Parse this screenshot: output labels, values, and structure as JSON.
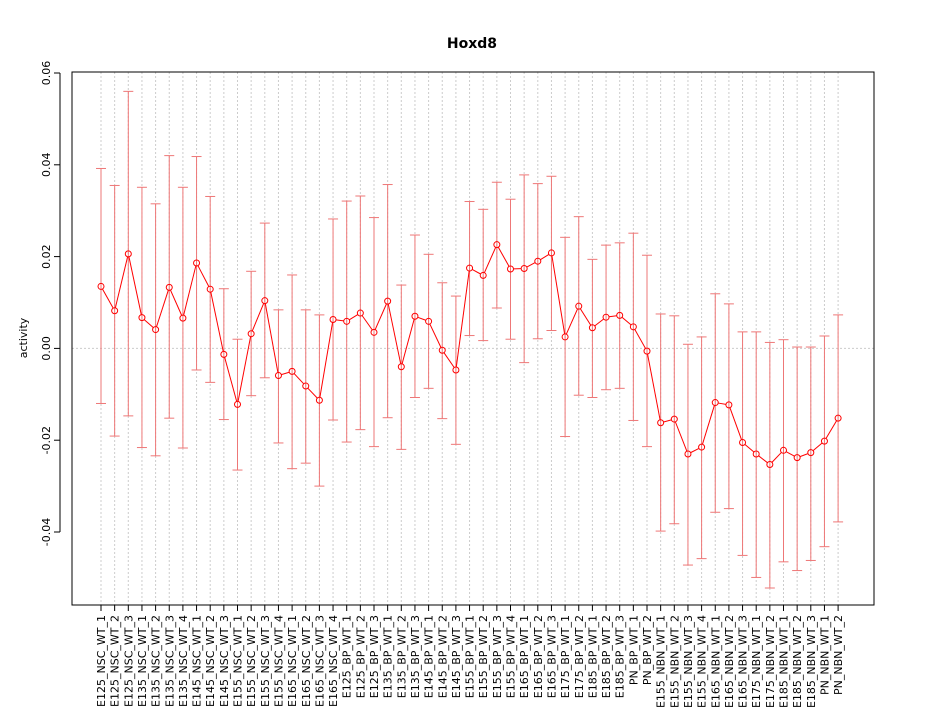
{
  "colors": {
    "series": "#ff0000",
    "errorbar": "#ee7777",
    "grid": "#cccccc",
    "axis": "#000000"
  },
  "chart_data": {
    "type": "line",
    "title": "Hoxd8",
    "xlabel": "",
    "ylabel": "activity",
    "ylim": [
      -0.055,
      0.06
    ],
    "yticks": [
      -0.04,
      -0.02,
      0.0,
      0.02,
      0.04,
      0.06
    ],
    "ytick_labels": [
      "-0.04",
      "-0.02",
      "0.00",
      "0.02",
      "0.04",
      "0.06"
    ],
    "grid": true,
    "zero_line": true,
    "categories": [
      "E125_NSC_WT_1",
      "E125_NSC_WT_2",
      "E125_NSC_WT_3",
      "E135_NSC_WT_1",
      "E135_NSC_WT_2",
      "E135_NSC_WT_3",
      "E135_NSC_WT_4",
      "E145_NSC_WT_1",
      "E145_NSC_WT_2",
      "E145_NSC_WT_3",
      "E155_NSC_WT_1",
      "E155_NSC_WT_2",
      "E155_NSC_WT_3",
      "E155_NSC_WT_4",
      "E165_NSC_WT_1",
      "E165_NSC_WT_2",
      "E165_NSC_WT_3",
      "E165_NSC_WT_4",
      "E125_BP_WT_1",
      "E125_BP_WT_2",
      "E125_BP_WT_3",
      "E135_BP_WT_1",
      "E135_BP_WT_2",
      "E135_BP_WT_3",
      "E145_BP_WT_1",
      "E145_BP_WT_2",
      "E145_BP_WT_3",
      "E155_BP_WT_1",
      "E155_BP_WT_2",
      "E155_BP_WT_3",
      "E155_BP_WT_4",
      "E165_BP_WT_1",
      "E165_BP_WT_2",
      "E165_BP_WT_3",
      "E175_BP_WT_1",
      "E175_BP_WT_2",
      "E185_BP_WT_1",
      "E185_BP_WT_2",
      "E185_BP_WT_3",
      "PN_BP_WT_1",
      "PN_BP_WT_2",
      "E155_NBN_WT_1",
      "E155_NBN_WT_2",
      "E155_NBN_WT_3",
      "E155_NBN_WT_4",
      "E165_NBN_WT_1",
      "E165_NBN_WT_2",
      "E165_NBN_WT_3",
      "E175_NBN_WT_1",
      "E175_NBN_WT_2",
      "E185_NBN_WT_1",
      "E185_NBN_WT_2",
      "E185_NBN_WT_3",
      "PN_NBN_WT_1",
      "PN_NBN_WT_2"
    ],
    "series": [
      {
        "values": [
          0.0135,
          0.0082,
          0.0206,
          0.0067,
          0.0041,
          0.0133,
          0.0066,
          0.0186,
          0.0129,
          -0.0013,
          -0.0122,
          0.0032,
          0.0104,
          -0.0059,
          -0.005,
          -0.0082,
          -0.0113,
          0.0063,
          0.0059,
          0.0077,
          0.0035,
          0.0103,
          -0.004,
          0.007,
          0.0059,
          -0.0004,
          -0.0047,
          0.0175,
          0.0159,
          0.0226,
          0.0173,
          0.0174,
          0.019,
          0.0208,
          0.0025,
          0.0092,
          0.0045,
          0.0068,
          0.0072,
          0.0047,
          -0.0006,
          -0.0162,
          -0.0154,
          -0.023,
          -0.0215,
          -0.0118,
          -0.0123,
          -0.0205,
          -0.023,
          -0.0253,
          -0.0222,
          -0.0238,
          -0.0227,
          -0.0202,
          -0.0152
        ],
        "upper": [
          0.0392,
          0.0355,
          0.056,
          0.0351,
          0.0315,
          0.042,
          0.0351,
          0.0418,
          0.0331,
          0.013,
          0.002,
          0.0168,
          0.0273,
          0.0084,
          0.016,
          0.0084,
          0.0073,
          0.0282,
          0.0321,
          0.0332,
          0.0285,
          0.0357,
          0.0138,
          0.0247,
          0.0205,
          0.0143,
          0.0114,
          0.032,
          0.0303,
          0.0362,
          0.0325,
          0.0378,
          0.0359,
          0.0375,
          0.0242,
          0.0287,
          0.0194,
          0.0225,
          0.023,
          0.0251,
          0.0203,
          0.0075,
          0.0071,
          0.0009,
          0.0025,
          0.0119,
          0.0097,
          0.0036,
          0.0036,
          0.0013,
          0.0019,
          0.0003,
          0.0003,
          0.0027,
          0.0073
        ],
        "lower": [
          -0.012,
          -0.0191,
          -0.0147,
          -0.0216,
          -0.0234,
          -0.0152,
          -0.0217,
          -0.0047,
          -0.0074,
          -0.0155,
          -0.0265,
          -0.0103,
          -0.0064,
          -0.0206,
          -0.0262,
          -0.025,
          -0.03,
          -0.0156,
          -0.0204,
          -0.0177,
          -0.0214,
          -0.0151,
          -0.022,
          -0.0107,
          -0.0087,
          -0.0153,
          -0.0209,
          0.0028,
          0.0017,
          0.0088,
          0.002,
          -0.0031,
          0.0021,
          0.0039,
          -0.0192,
          -0.0102,
          -0.0107,
          -0.009,
          -0.0087,
          -0.0157,
          -0.0214,
          -0.0398,
          -0.0382,
          -0.0472,
          -0.0458,
          -0.0357,
          -0.0349,
          -0.0451,
          -0.0499,
          -0.0522,
          -0.0465,
          -0.0484,
          -0.0462,
          -0.0432,
          -0.0378
        ]
      }
    ]
  }
}
